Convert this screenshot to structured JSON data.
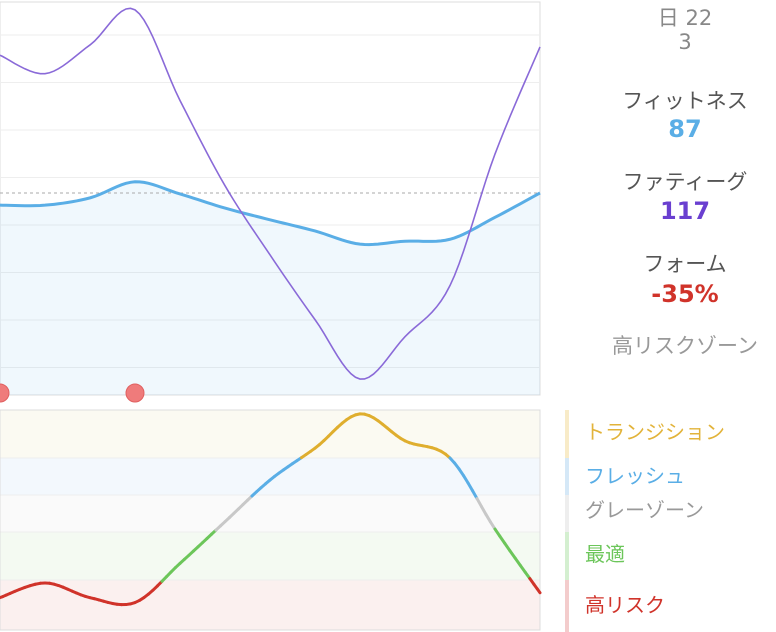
{
  "date": {
    "line1": "日 22",
    "line2": "3"
  },
  "fitness": {
    "label": "フィットネス",
    "value": "87",
    "color": "#5aaee6"
  },
  "fatigue": {
    "label": "ファティーグ",
    "value": "117",
    "color": "#6a3fd0"
  },
  "form": {
    "label": "フォーム",
    "value": "-35%",
    "color": "#d0332a"
  },
  "zone_status": "高リスクゾーン",
  "legend": [
    {
      "label": "トランジション",
      "color": "#e2b33a",
      "bar": "#f8ebc8"
    },
    {
      "label": "フレッシュ",
      "color": "#5aaee6",
      "bar": "#d5e8f7"
    },
    {
      "label": "グレーゾーン",
      "color": "#999999",
      "bar": "#eeeeee"
    },
    {
      "label": "最適",
      "color": "#6cc65a",
      "bar": "#d4efd0"
    },
    {
      "label": "高リスク",
      "color": "#d0332a",
      "bar": "#f3cccc"
    }
  ],
  "chart_data": [
    {
      "type": "line",
      "series": [
        {
          "name": "フィットネス",
          "color": "#5aaee6",
          "values": [
            84.5,
            84.5,
            86.0,
            89.3,
            86.8,
            83.9,
            81.5,
            79.2,
            76.5,
            77.1,
            77.5,
            82.0,
            87
          ]
        },
        {
          "name": "ファティーグ",
          "color": "#8a6ad8",
          "values": [
            115.3,
            111.5,
            117.4,
            124.6,
            106,
            88.5,
            74.3,
            61,
            48.8,
            57.5,
            68,
            95,
            117
          ]
        }
      ]
    },
    {
      "type": "line",
      "unit": "%",
      "zones": [
        {
          "name": "トランジション",
          "min": 20,
          "max": 45
        },
        {
          "name": "フレッシュ",
          "min": 5,
          "max": 20
        },
        {
          "name": "グレーゾーン",
          "min": -10,
          "max": 5
        },
        {
          "name": "最適",
          "min": -30,
          "max": -10
        },
        {
          "name": "高リスク",
          "min": -50,
          "max": -30
        }
      ],
      "series": [
        {
          "name": "フォーム",
          "values": [
            -37,
            -31,
            -37,
            -39,
            -23,
            -6,
            11,
            24,
            38,
            27,
            20,
            -9,
            -35
          ]
        }
      ]
    }
  ]
}
